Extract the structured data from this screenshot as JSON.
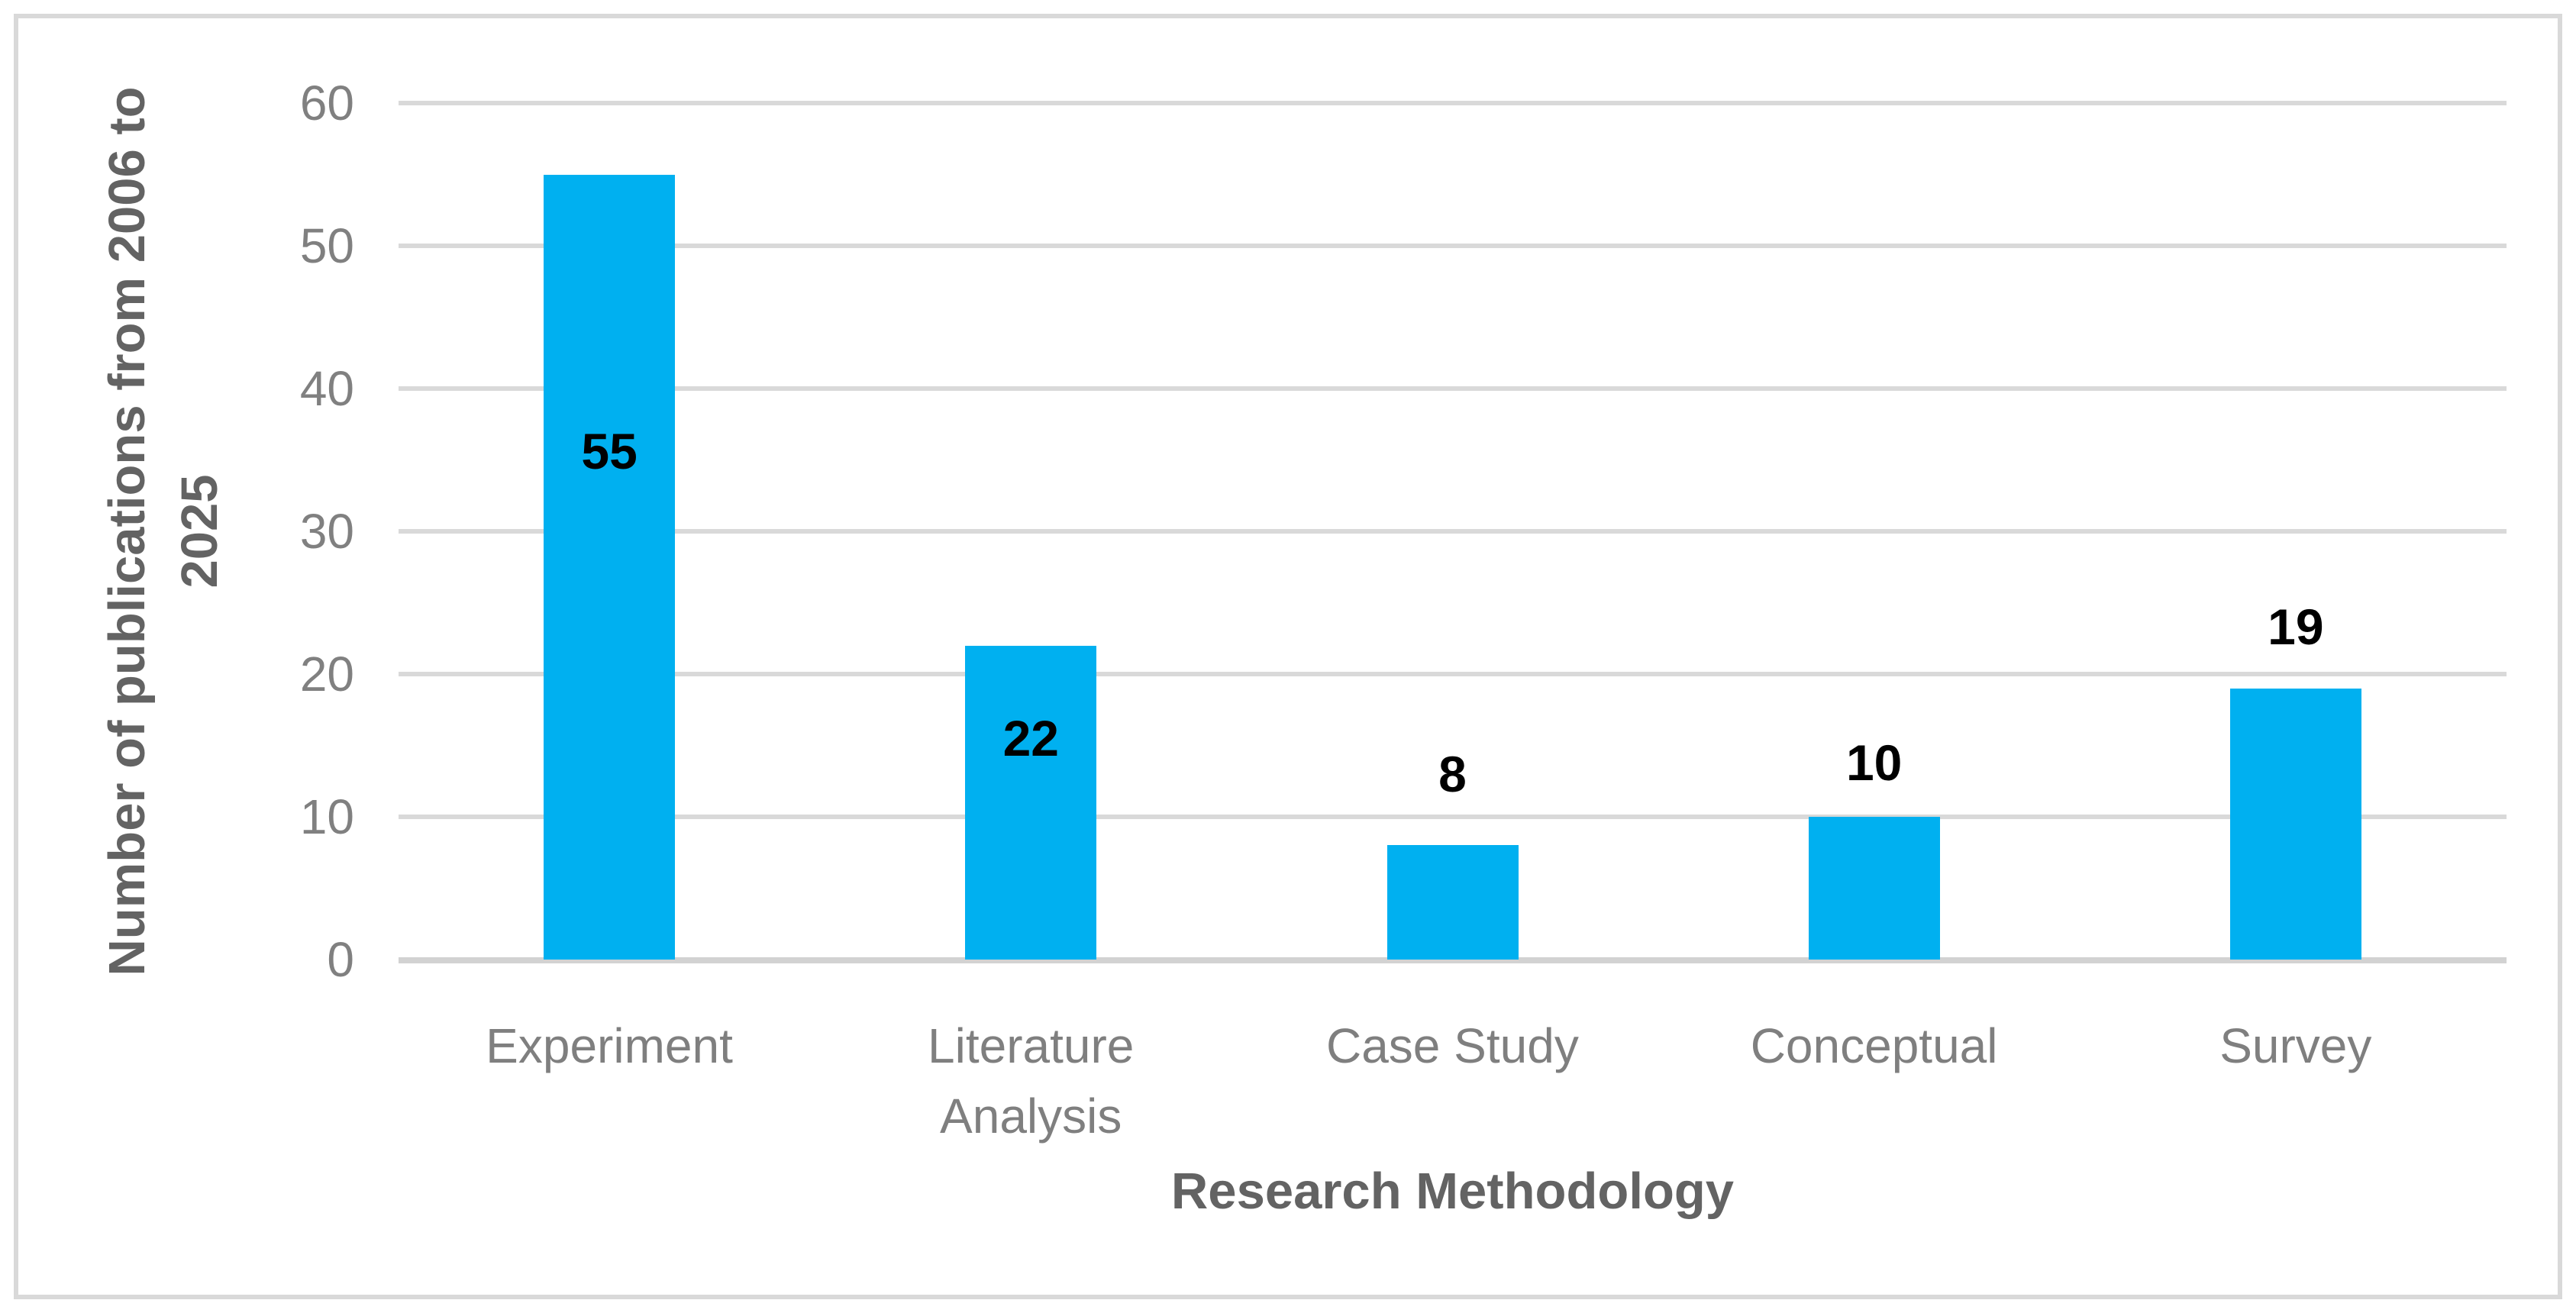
{
  "chart_data": {
    "type": "bar",
    "categories": [
      "Experiment",
      "Literature Analysis",
      "Case Study",
      "Conceptual",
      "Survey"
    ],
    "category_lines": [
      [
        "Experiment"
      ],
      [
        "Literature",
        "Analysis"
      ],
      [
        "Case Study"
      ],
      [
        "Conceptual"
      ],
      [
        "Survey"
      ]
    ],
    "values": [
      55,
      22,
      8,
      10,
      19
    ],
    "data_labels": [
      "55",
      "22",
      "8",
      "10",
      "19"
    ],
    "title": "",
    "xlabel": "Research Methodology",
    "ylabel": "Number of publications from 2006 to 2025",
    "ylabel_lines": [
      "Number of publications from 2006 to",
      "2025"
    ],
    "ylim": [
      0,
      60
    ],
    "yticks": [
      0,
      10,
      20,
      30,
      40,
      50,
      60
    ],
    "grid": true,
    "legend": "none",
    "bar_color": "#00B0F0",
    "value_label_color": "#000000",
    "tick_label_color": "#808080",
    "category_label_color": "#7F7F7F",
    "axis_title_color": "#636363",
    "gridline_color": "#D9D9D9",
    "axis_line_color": "#D2D2D2",
    "frame_border_color": "#D9D9D9",
    "label_value_y": [
      35.6,
      15.5,
      13.0,
      13.8,
      23.3
    ]
  }
}
